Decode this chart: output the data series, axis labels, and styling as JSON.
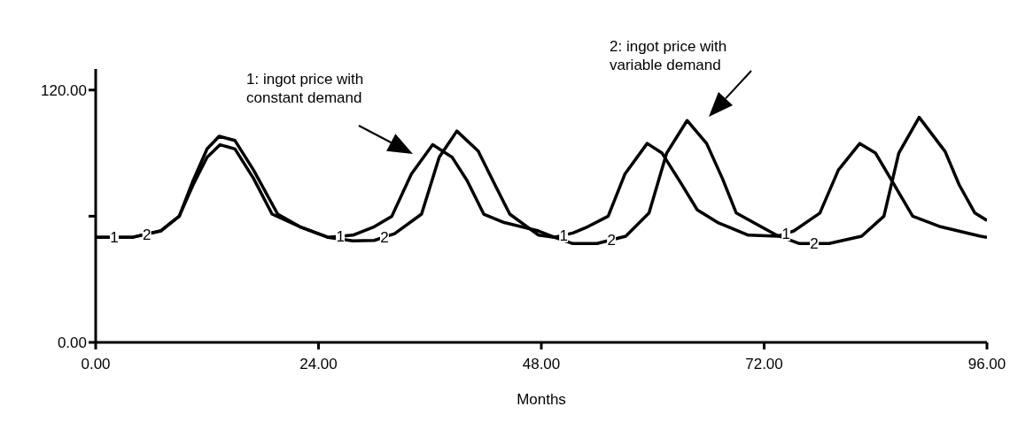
{
  "chart_data": {
    "type": "line",
    "xlabel": "Months",
    "xlim": [
      0,
      96
    ],
    "ylim": [
      0,
      130
    ],
    "xticks": [
      {
        "value": 0,
        "label": "0.00"
      },
      {
        "value": 24,
        "label": "24.00"
      },
      {
        "value": 48,
        "label": "48.00"
      },
      {
        "value": 72,
        "label": "72.00"
      },
      {
        "value": 96,
        "label": "96.00"
      }
    ],
    "yticks": [
      {
        "value": 0,
        "label": "0.00"
      },
      {
        "value": 60,
        "label": null
      },
      {
        "value": 120,
        "label": "120.00"
      }
    ],
    "series": [
      {
        "name": "1",
        "color": "#000000",
        "x": [
          0,
          4,
          7,
          9,
          10.5,
          12,
          13.4,
          15,
          17,
          19,
          22,
          25,
          27.7,
          30,
          31.9,
          34,
          36.3,
          38.4,
          40,
          41.8,
          44,
          47.7,
          49.4,
          51.4,
          53,
          55.2,
          57,
          59.4,
          61,
          63,
          64.8,
          67,
          70.3,
          73.5,
          75.2,
          78,
          80,
          82.3,
          84,
          86,
          88,
          91,
          95.3,
          96
        ],
        "values": [
          50,
          50,
          53,
          60,
          75,
          88,
          94,
          92,
          78,
          61,
          55,
          50,
          51,
          55,
          60,
          80,
          94,
          88,
          77,
          61,
          57,
          53,
          50,
          52,
          55,
          60,
          80,
          94.6,
          90,
          76,
          63,
          57,
          51,
          50.5,
          53,
          61.5,
          82,
          94.6,
          90,
          75,
          60,
          55,
          50.5,
          50
        ]
      },
      {
        "name": "2",
        "color": "#000000",
        "x": [
          0,
          4,
          7,
          9,
          10.5,
          12,
          13.3,
          15,
          17,
          19.6,
          22,
          25,
          27.7,
          30,
          32.2,
          35.1,
          37,
          38.9,
          41.2,
          43,
          44.6,
          47.7,
          49.4,
          51.4,
          54,
          57.1,
          59.6,
          61.5,
          63.7,
          65.8,
          67.5,
          69,
          73.2,
          75.8,
          79,
          82.5,
          84.9,
          86.5,
          88.7,
          91.5,
          93,
          94.7,
          96
        ],
        "values": [
          50,
          50,
          53,
          60,
          77,
          92,
          98,
          96,
          82,
          61,
          55,
          50,
          48.3,
          48.5,
          51.7,
          61,
          88,
          100.5,
          91,
          75,
          61,
          51,
          50,
          47,
          47,
          50.5,
          61.5,
          90,
          105.5,
          94.6,
          78,
          61.5,
          51.3,
          47,
          47,
          50.5,
          60,
          90,
          107,
          90.7,
          75,
          61.5,
          58
        ]
      }
    ],
    "annotations": [
      "1: ingot price with\nconstant demand",
      "2: ingot price with\nvariable demand"
    ]
  }
}
